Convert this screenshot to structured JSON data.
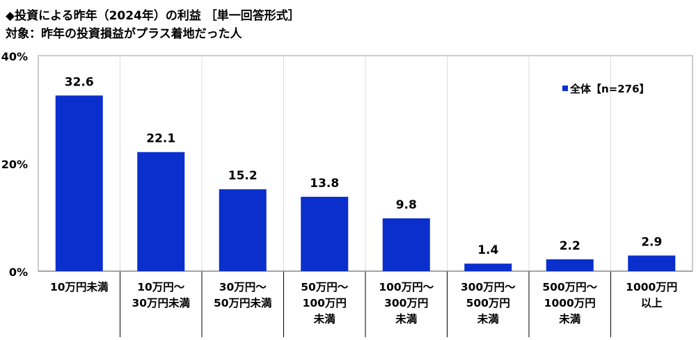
{
  "title": "◆投資による昨年（2024年）の利益 ［単一回答形式］",
  "subtitle": "対象：昨年の投資損益がプラス着地だった人",
  "chart_data": {
    "type": "bar",
    "title": "◆投資による昨年（2024年）の利益 ［単一回答形式］",
    "categories": [
      [
        "10万円未満"
      ],
      [
        "10万円～",
        "30万円未満"
      ],
      [
        "30万円～",
        "50万円未満"
      ],
      [
        "50万円～",
        "100万円",
        "未満"
      ],
      [
        "100万円～",
        "300万円",
        "未満"
      ],
      [
        "300万円～",
        "500万円",
        "未満"
      ],
      [
        "500万円～",
        "1000万円",
        "未満"
      ],
      [
        "1000万円",
        "以上"
      ]
    ],
    "series": [
      {
        "name": "全体【n=276】",
        "values": [
          32.6,
          22.1,
          15.2,
          13.8,
          9.8,
          1.4,
          2.2,
          2.9
        ],
        "color": "#0a2fcc"
      }
    ],
    "ylim": [
      0,
      40
    ],
    "yticks": [
      0,
      20,
      40
    ],
    "ytick_labels": [
      "0%",
      "20%",
      "40%"
    ],
    "legend_position": "top-right",
    "xlabel": "",
    "ylabel": ""
  }
}
